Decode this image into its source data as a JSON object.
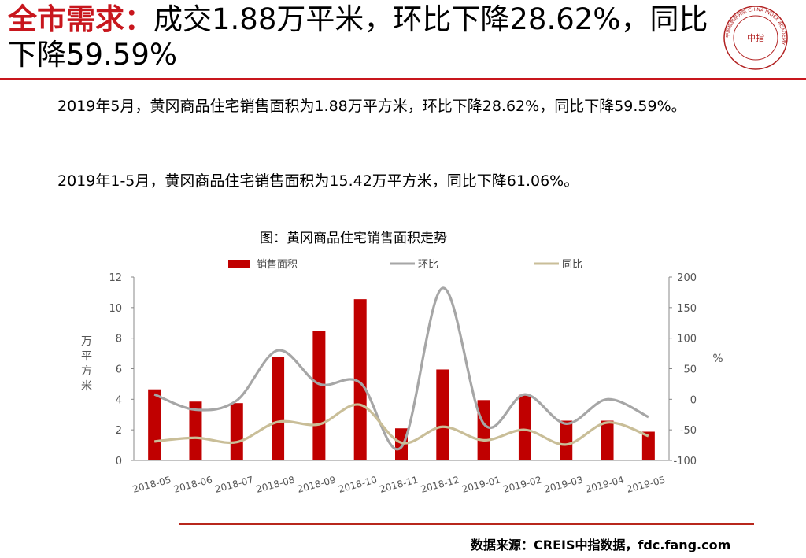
{
  "title": {
    "highlight": "全市需求：",
    "rest": "成交1.88万平米，环比下降28.62%，同比下降59.59%"
  },
  "logo": {
    "center_text": "中指",
    "ring_text": "中国指数研究院 CHINA INDEX ACADEMY"
  },
  "paragraphs": {
    "p1": "2019年5月，黄冈商品住宅销售面积为1.88万平方米，环比下降28.62%，同比下降59.59%。",
    "p2": "2019年1-5月，黄冈商品住宅销售面积为15.42万平方米，同比下降61.06%。"
  },
  "chart_data": {
    "type": "bar",
    "title": "图：黄冈商品住宅销售面积走势",
    "categories": [
      "2018-05",
      "2018-06",
      "2018-07",
      "2018-08",
      "2018-09",
      "2018-10",
      "2018-11",
      "2018-12",
      "2019-01",
      "2019-02",
      "2019-03",
      "2019-04",
      "2019-05"
    ],
    "ylabel": "万平方米",
    "y2label": "%",
    "ylim": [
      0,
      12
    ],
    "y2lim": [
      -100,
      200
    ],
    "yticks": [
      0,
      2,
      4,
      6,
      8,
      10,
      12
    ],
    "y2ticks": [
      -100,
      -50,
      0,
      50,
      100,
      150,
      200
    ],
    "legend_position": "top",
    "series": [
      {
        "name": "销售面积",
        "kind": "bar",
        "axis": "left",
        "color": "#c00000",
        "values": [
          4.65,
          3.85,
          3.75,
          6.75,
          8.45,
          10.55,
          2.1,
          5.95,
          3.95,
          4.3,
          2.6,
          2.6,
          1.88
        ]
      },
      {
        "name": "环比",
        "kind": "line",
        "axis": "right",
        "color": "#a6a6a6",
        "values": [
          8,
          -17,
          -2,
          80,
          25,
          27,
          -78,
          182,
          -40,
          8,
          -40,
          0,
          -29
        ]
      },
      {
        "name": "同比",
        "kind": "line",
        "axis": "right",
        "color": "#c9be98",
        "values": [
          -69,
          -63,
          -70,
          -37,
          -41,
          -9,
          -71,
          -45,
          -67,
          -50,
          -74,
          -38,
          -60
        ]
      }
    ]
  },
  "source": "数据来源：CREIS中指数据，fdc.fang.com"
}
